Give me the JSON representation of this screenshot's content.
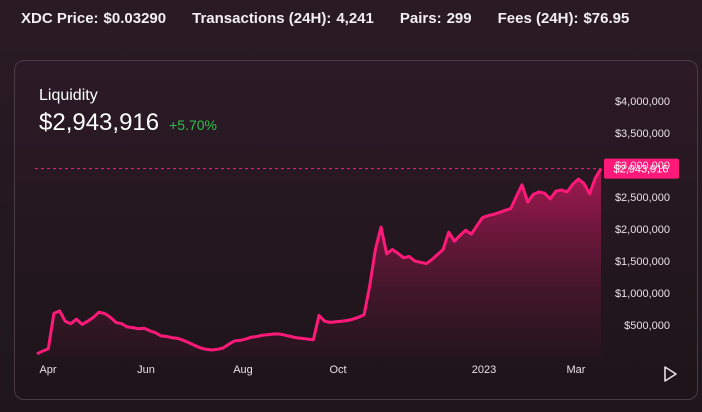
{
  "stats": [
    {
      "label": "XDC Price:",
      "value": "$0.03290"
    },
    {
      "label": "Transactions (24H):",
      "value": "4,241"
    },
    {
      "label": "Pairs:",
      "value": "299"
    },
    {
      "label": "Fees (24H):",
      "value": "$76.95"
    }
  ],
  "card": {
    "title": "Liquidity",
    "value": "$2,943,916",
    "change": "+5.70%",
    "change_color": "#2ec24a",
    "current_label": "$2,943,916"
  },
  "colors": {
    "line": "#ff1a7a",
    "accent": "#ff1a7a",
    "axis_text": "#e8e0e6"
  },
  "chart_data": {
    "type": "area",
    "title": "Liquidity",
    "xlabel": "",
    "ylabel": "",
    "ylim": [
      0,
      4200000
    ],
    "y_ticks": [
      500000,
      1000000,
      1500000,
      2000000,
      2500000,
      3000000,
      3500000,
      4000000
    ],
    "y_tick_labels": [
      "$500,000",
      "$1,000,000",
      "$1,500,000",
      "$2,000,000",
      "$2,500,000",
      "$3,000,000",
      "$3,500,000",
      "$4,000,000"
    ],
    "x_ticks": [
      "Apr",
      "Jun",
      "Aug",
      "Oct",
      "2023",
      "Mar"
    ],
    "current_value": 2943916,
    "series": [
      {
        "values": [
          50000,
          90000,
          130000,
          680000,
          720000,
          560000,
          520000,
          590000,
          510000,
          560000,
          620000,
          700000,
          680000,
          620000,
          540000,
          520000,
          470000,
          460000,
          440000,
          450000,
          410000,
          380000,
          330000,
          320000,
          300000,
          290000,
          260000,
          220000,
          180000,
          140000,
          120000,
          110000,
          120000,
          140000,
          200000,
          250000,
          260000,
          280000,
          310000,
          320000,
          340000,
          350000,
          360000,
          360000,
          340000,
          320000,
          300000,
          290000,
          280000,
          270000,
          650000,
          560000,
          540000,
          550000,
          560000,
          570000,
          590000,
          620000,
          660000,
          1120000,
          1680000,
          2030000,
          1610000,
          1680000,
          1620000,
          1550000,
          1570000,
          1500000,
          1480000,
          1460000,
          1520000,
          1600000,
          1680000,
          1950000,
          1810000,
          1900000,
          1980000,
          1920000,
          2050000,
          2180000,
          2210000,
          2230000,
          2260000,
          2290000,
          2320000,
          2510000,
          2690000,
          2420000,
          2540000,
          2580000,
          2560000,
          2470000,
          2590000,
          2610000,
          2580000,
          2700000,
          2780000,
          2710000,
          2550000,
          2800000,
          2943916
        ]
      }
    ]
  }
}
